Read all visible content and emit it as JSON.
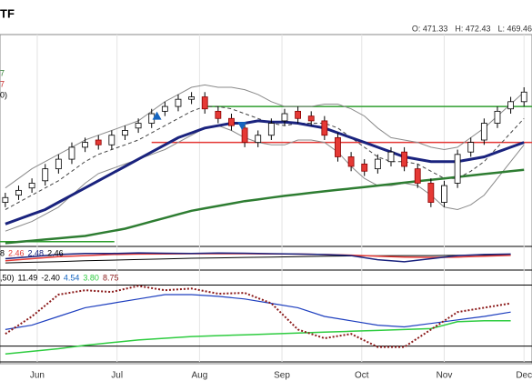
{
  "chart_data": {
    "type": "candlestick",
    "title": "TF",
    "ohlc_labels": [
      "O: 471.33",
      "H: 472.43",
      "L: 469.46"
    ],
    "legend_fragments": [
      {
        "text": "7",
        "color": "#2e7d32"
      },
      {
        "text": "7",
        "color": "#c62828"
      },
      {
        "text": "0)",
        "color": "#000000"
      }
    ],
    "xlim": [
      138,
      338
    ],
    "xticks": [
      {
        "value": 152,
        "label": "Jun"
      },
      {
        "value": 182,
        "label": "Jul"
      },
      {
        "value": 213,
        "label": "Aug"
      },
      {
        "value": 244,
        "label": "Sep"
      },
      {
        "value": 274,
        "label": "Oct"
      },
      {
        "value": 305,
        "label": "Nov"
      },
      {
        "value": 335,
        "label": "Dec"
      }
    ],
    "ylim": [
      395,
      483
    ],
    "x": [
      140,
      145,
      150,
      155,
      160,
      165,
      170,
      175,
      180,
      185,
      190,
      195,
      200,
      205,
      210,
      215,
      220,
      225,
      230,
      235,
      240,
      245,
      250,
      255,
      260,
      265,
      270,
      275,
      280,
      285,
      290,
      295,
      300,
      305,
      310,
      315,
      320,
      325,
      330,
      335
    ],
    "open": [
      413,
      416,
      419,
      422,
      427,
      431,
      436,
      439,
      437,
      441,
      444,
      446,
      451,
      453,
      456,
      457,
      451,
      448,
      444,
      438,
      441,
      447,
      451,
      449,
      447,
      440,
      432,
      429,
      427,
      430,
      434,
      427,
      421,
      413,
      421,
      434,
      439,
      446,
      452,
      455
    ],
    "high": [
      417,
      420,
      423,
      429,
      433,
      438,
      440,
      441,
      443,
      445,
      448,
      452,
      455,
      458,
      459,
      459,
      453,
      450,
      446,
      443,
      448,
      452,
      453,
      451,
      449,
      442,
      434,
      431,
      433,
      436,
      436,
      429,
      423,
      422,
      435,
      440,
      448,
      453,
      457,
      461
    ],
    "low": [
      411,
      414,
      417,
      420,
      425,
      429,
      434,
      435,
      435,
      439,
      442,
      444,
      449,
      451,
      454,
      450,
      446,
      443,
      436,
      436,
      439,
      445,
      446,
      445,
      439,
      430,
      426,
      424,
      425,
      428,
      426,
      419,
      411,
      411,
      419,
      432,
      437,
      444,
      450,
      453
    ],
    "close": [
      415,
      418,
      421,
      427,
      431,
      436,
      438,
      437,
      441,
      443,
      446,
      450,
      453,
      456,
      457,
      452,
      448,
      445,
      438,
      441,
      446,
      450,
      448,
      447,
      441,
      432,
      428,
      426,
      431,
      434,
      428,
      421,
      413,
      420,
      433,
      438,
      446,
      451,
      455,
      459
    ],
    "up_color": "#ffffff",
    "down_color": "#e53935",
    "series": [
      {
        "color": "#8a8a8a",
        "width": 1,
        "style": "solid",
        "values": [
          419,
          423,
          427,
          430,
          433,
          436,
          439,
          441,
          443,
          445,
          447,
          451,
          455,
          458,
          461,
          462,
          461,
          461,
          460,
          458,
          455,
          453,
          453,
          453,
          454,
          454,
          452,
          449,
          444,
          440,
          439,
          438,
          436,
          435,
          436,
          440,
          444,
          449,
          454,
          459
        ]
      },
      {
        "color": "#8a8a8a",
        "width": 1,
        "style": "solid",
        "values": [
          401,
          403,
          405,
          408,
          411,
          416,
          421,
          425,
          427,
          429,
          431,
          433,
          435,
          438,
          441,
          444,
          445,
          443,
          440,
          438,
          437,
          437,
          439,
          439,
          438,
          434,
          428,
          423,
          420,
          420,
          421,
          420,
          416,
          411,
          410,
          412,
          416,
          423,
          430,
          437
        ]
      },
      {
        "color": "#444444",
        "width": 1,
        "style": "dashed",
        "values": [
          410,
          413,
          416,
          419,
          422,
          426,
          430,
          433,
          435,
          437,
          439,
          442,
          445,
          448,
          451,
          453,
          453,
          452,
          450,
          448,
          446,
          445,
          446,
          446,
          446,
          444,
          440,
          436,
          432,
          430,
          430,
          429,
          426,
          423,
          423,
          426,
          430,
          436,
          442,
          448
        ]
      },
      {
        "color": "#1a237e",
        "width": 3,
        "style": "solid",
        "values": [
          404,
          406,
          408,
          410,
          413,
          416,
          419,
          422,
          425,
          428,
          431,
          434,
          437,
          440,
          442,
          444,
          445,
          446,
          446,
          447,
          446.5,
          446.5,
          446,
          445,
          444,
          442,
          440,
          438,
          436,
          434,
          432,
          431,
          430,
          430,
          430,
          431,
          432,
          434,
          436,
          438
        ]
      },
      {
        "color": "#2e7d32",
        "width": 2.5,
        "style": "solid",
        "values": [
          396,
          396.5,
          397,
          397.5,
          398,
          398.5,
          399,
          400,
          401,
          402,
          403.5,
          405,
          406.5,
          408,
          409.5,
          410.5,
          411.5,
          412.5,
          413.5,
          414.2,
          415,
          415.7,
          416.3,
          417,
          417.6,
          418.2,
          418.8,
          419.4,
          420,
          420.6,
          421.2,
          421.8,
          422.4,
          423,
          423.6,
          424.2,
          424.8,
          425.4,
          426,
          426.6
        ]
      }
    ],
    "levels": [
      {
        "value": 453,
        "color": "#2e9e2e",
        "xlim": [
          215,
          338
        ]
      },
      {
        "value": 438,
        "color": "#e53935",
        "xlim": [
          195,
          338
        ]
      },
      {
        "value": 396.6,
        "color": "#2e9e2e",
        "xlim": [
          138,
          181
        ]
      }
    ],
    "markers": [
      {
        "x": 197,
        "value": 449,
        "shape": "up",
        "color": "#1565c0"
      },
      {
        "x": 229,
        "value": 445,
        "shape": "down",
        "color": "#1565c0"
      }
    ],
    "panels": [
      {
        "labels": [
          {
            "text": "8",
            "color": "#000000"
          },
          {
            "text": "2.46",
            "color": "#e53935"
          },
          {
            "text": "2.48",
            "color": "#1a237e"
          },
          {
            "text": "2.46",
            "color": "#000000"
          }
        ],
        "x": [
          140,
          150,
          160,
          170,
          180,
          190,
          200,
          210,
          220,
          230,
          240,
          250,
          260,
          270,
          280,
          290,
          300,
          310,
          320,
          330
        ],
        "ylim": [
          0,
          10
        ],
        "series": [
          {
            "color": "#000000",
            "width": 1,
            "style": "solid",
            "values": [
              3,
              3.3,
              3.6,
              4,
              4.3,
              4.6,
              4.9,
              5.2,
              5.4,
              5.6,
              5.8,
              6,
              6.2,
              6.3,
              6.4,
              6.5,
              6.5,
              6.6,
              6.7,
              6.8
            ]
          },
          {
            "color": "#e53935",
            "width": 1.5,
            "style": "solid",
            "values": [
              4,
              5,
              6,
              6.5,
              7,
              7.2,
              7.3,
              7.4,
              7.4,
              7.4,
              7.3,
              7.2,
              7,
              6.7,
              6.2,
              5.8,
              5.6,
              5.8,
              6.2,
              6.6
            ]
          },
          {
            "color": "#1a237e",
            "width": 1.5,
            "style": "solid",
            "values": [
              5,
              6,
              7,
              7.5,
              7.5,
              7.8,
              7.6,
              7.5,
              7.7,
              7.6,
              7.4,
              7.2,
              7,
              6.5,
              4.5,
              3.5,
              5,
              6.5,
              7,
              7.2
            ]
          }
        ],
        "levels": []
      },
      {
        "labels": [
          {
            "text": ",50)",
            "color": "#000000"
          },
          {
            "text": "11.49",
            "color": "#000000"
          },
          {
            "text": "-2.40",
            "color": "#000000"
          },
          {
            "text": "4.54",
            "color": "#1565c0"
          },
          {
            "text": "3.80",
            "color": "#2ecc40"
          },
          {
            "text": "8.75",
            "color": "#8b1a1a"
          }
        ],
        "x": [
          140,
          150,
          160,
          170,
          180,
          190,
          200,
          210,
          220,
          230,
          240,
          250,
          260,
          270,
          280,
          290,
          300,
          310,
          320,
          330
        ],
        "ylim": [
          0,
          10
        ],
        "series": [
          {
            "color": "#2ecc40",
            "width": 1.5,
            "style": "solid",
            "values": [
              0.7,
              1,
              1.3,
              1.7,
              2,
              2.3,
              2.5,
              2.7,
              2.8,
              2.9,
              3,
              3.1,
              3.2,
              3.3,
              3.4,
              3.5,
              3.6,
              4.4,
              4.5,
              4.5
            ]
          },
          {
            "color": "#1e3fbf",
            "width": 1.2,
            "style": "solid",
            "values": [
              3.5,
              4,
              5,
              6,
              6.5,
              7,
              7.5,
              7.5,
              7.3,
              7,
              6.5,
              6,
              5,
              4.5,
              4,
              3.8,
              4.2,
              4.6,
              5,
              5.5
            ]
          },
          {
            "color": "#8b1a1a",
            "width": 2,
            "style": "dotted",
            "values": [
              3,
              5,
              7.5,
              8,
              7.8,
              8.5,
              8,
              8.2,
              7.6,
              7.7,
              6.5,
              3.5,
              2.5,
              3,
              1.5,
              1.5,
              3.5,
              5.5,
              6,
              6.5
            ]
          }
        ],
        "levels": [
          8.6,
          1.6
        ]
      }
    ]
  }
}
